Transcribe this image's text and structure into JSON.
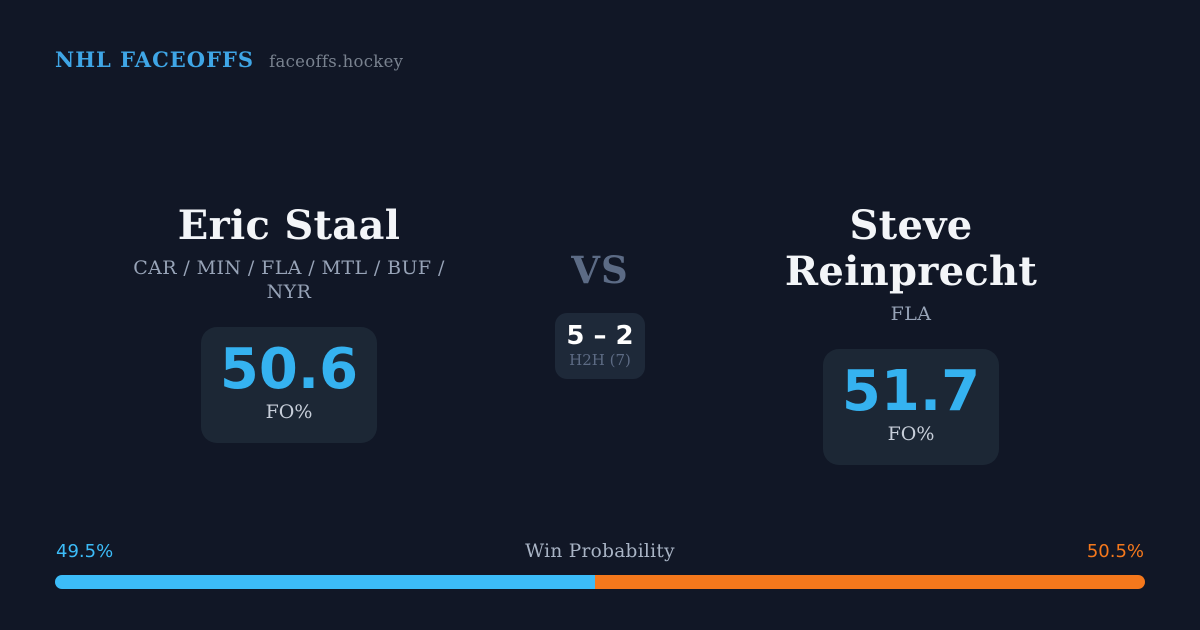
{
  "header": {
    "brand": "NHL FACEOFFS",
    "site": "faceoffs.hockey"
  },
  "matchup": {
    "vs_label": "VS",
    "h2h": {
      "score": "5 – 2",
      "label": "H2H (7)"
    },
    "players": [
      {
        "name": "Eric Staal",
        "teams": "CAR / MIN / FLA / MTL / BUF / NYR",
        "fo_pct": "50.6",
        "stat_label": "FO%"
      },
      {
        "name": "Steve Reinprecht",
        "teams": "FLA",
        "fo_pct": "51.7",
        "stat_label": "FO%"
      }
    ]
  },
  "win_probability": {
    "title": "Win Probability",
    "left_pct_label": "49.5%",
    "right_pct_label": "50.5%"
  },
  "chart_data": {
    "type": "bar",
    "title": "Win Probability",
    "categories": [
      "Eric Staal",
      "Steve Reinprecht"
    ],
    "values": [
      49.5,
      50.5
    ],
    "series": [
      {
        "name": "Eric Staal win probability",
        "values": [
          49.5
        ],
        "color": "#3cbcf8"
      },
      {
        "name": "Steve Reinprecht win probability",
        "values": [
          50.5
        ],
        "color": "#f5781c"
      }
    ],
    "orientation": "horizontal-stacked",
    "xlim": [
      0,
      100
    ],
    "legend": "none",
    "grid": false
  },
  "colors": {
    "background": "#111726",
    "card": "#1c2735",
    "header_blue": "#3fa6e6",
    "stat_blue": "#35b2f0",
    "bar_blue": "#3cbcf8",
    "bar_orange": "#f5781c"
  }
}
